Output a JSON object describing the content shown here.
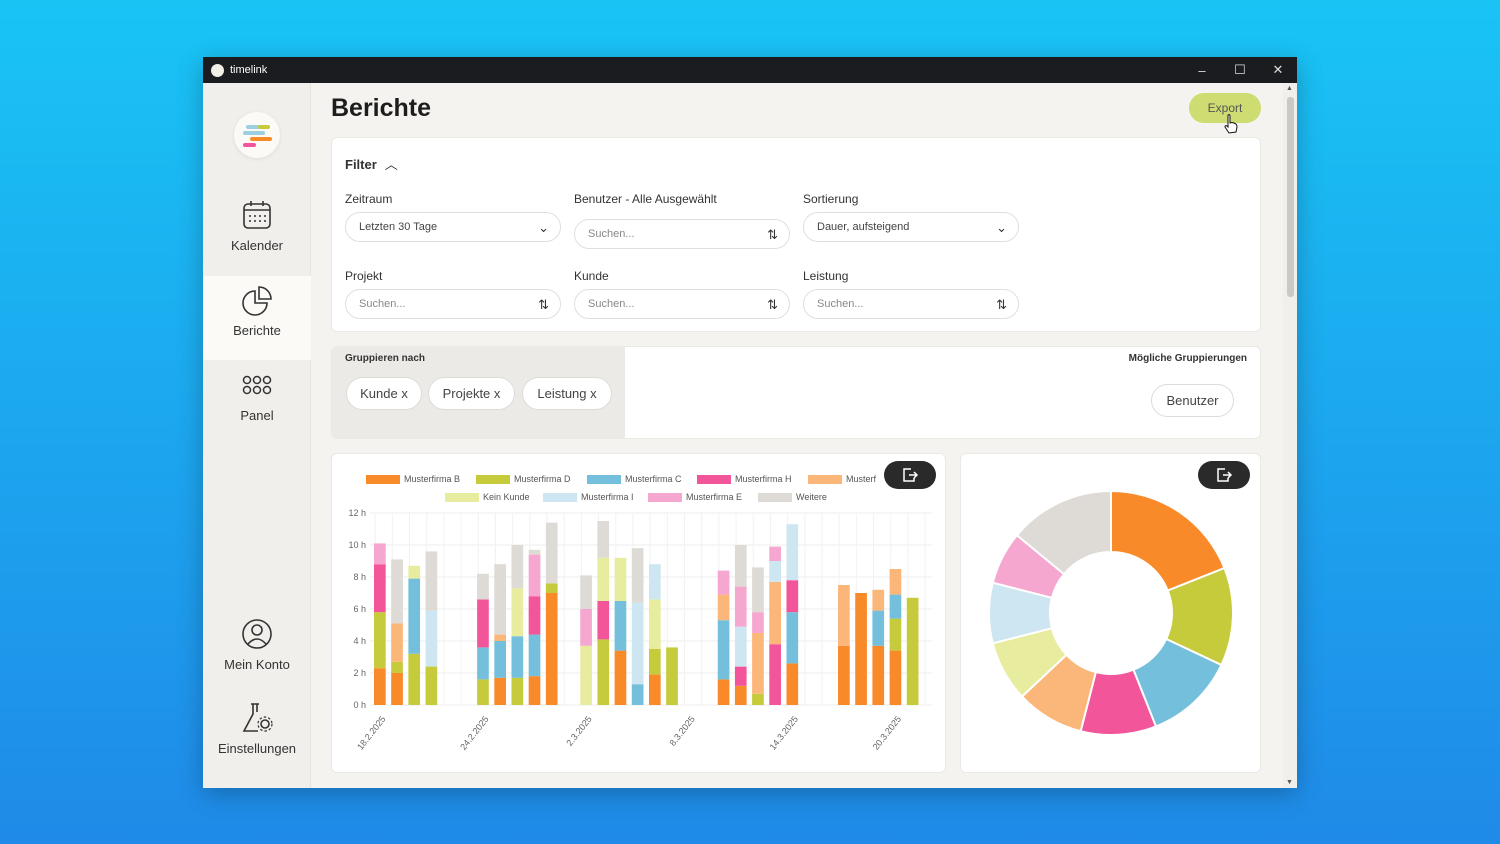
{
  "window": {
    "title": "timelink",
    "controls": [
      "–",
      "☐",
      "✕"
    ]
  },
  "sidebar": {
    "items": [
      {
        "label": "Kalender",
        "icon": "calendar-icon"
      },
      {
        "label": "Berichte",
        "icon": "pie-chart-icon",
        "active": true
      },
      {
        "label": "Panel",
        "icon": "grid-icon"
      },
      {
        "label": "Mein Konto",
        "icon": "user-icon"
      },
      {
        "label": "Einstellungen",
        "icon": "flask-gear-icon"
      }
    ]
  },
  "page": {
    "title": "Berichte",
    "export_label": "Export"
  },
  "filter": {
    "title": "Filter",
    "zeitraum": {
      "label": "Zeitraum",
      "value": "Letzten 30 Tage"
    },
    "benutzer": {
      "label": "Benutzer - Alle Ausgewählt",
      "placeholder": "Suchen..."
    },
    "sortierung": {
      "label": "Sortierung",
      "value": "Dauer, aufsteigend"
    },
    "projekt": {
      "label": "Projekt",
      "placeholder": "Suchen..."
    },
    "kunde": {
      "label": "Kunde",
      "placeholder": "Suchen..."
    },
    "leistung": {
      "label": "Leistung",
      "placeholder": "Suchen..."
    }
  },
  "grouping": {
    "title": "Gruppieren nach",
    "active": [
      "Kunde x",
      "Projekte x",
      "Leistung x"
    ],
    "possible_title": "Mögliche Gruppierungen",
    "possible": [
      "Benutzer"
    ]
  },
  "colors": {
    "Musterfirma B": "#f98a2a",
    "Musterfirma D": "#c5cb3a",
    "Musterfirma C": "#74c0dc",
    "Musterfirma H": "#f2559a",
    "Musterfirma A": "#fbb679",
    "Kein Kunde": "#e8ec9f",
    "Musterfirma I": "#cde6f1",
    "Musterfirma E": "#f5a7cf",
    "Weitere": "#dedad5"
  },
  "chart_data": [
    {
      "type": "bar",
      "stacked": true,
      "legend": [
        "Musterfirma B",
        "Musterfirma D",
        "Musterfirma C",
        "Musterfirma H",
        "Musterf",
        "Kein Kunde",
        "Musterfirma I",
        "Musterfirma E",
        "Weitere"
      ],
      "y_ticks": [
        "0 h",
        "2 h",
        "4 h",
        "6 h",
        "8 h",
        "10 h",
        "12 h"
      ],
      "ylim": [
        0,
        12
      ],
      "x_ticks": [
        {
          "label": "18.2.2025",
          "day": 0
        },
        {
          "label": "24.2.2025",
          "day": 6
        },
        {
          "label": "2.3.2025",
          "day": 12
        },
        {
          "label": "8.3.2025",
          "day": 18
        },
        {
          "label": "14.3.2025",
          "day": 24
        },
        {
          "label": "20.3.2025",
          "day": 30
        }
      ],
      "bars": [
        {
          "day": 0,
          "segments": [
            [
              "Musterfirma B",
              2.3
            ],
            [
              "Musterfirma D",
              3.5
            ],
            [
              "Musterfirma H",
              3.0
            ],
            [
              "Musterfirma E",
              1.3
            ]
          ]
        },
        {
          "day": 1,
          "segments": [
            [
              "Musterfirma B",
              2.0
            ],
            [
              "Musterfirma D",
              0.7
            ],
            [
              "Musterfirma A",
              2.4
            ],
            [
              "Weitere",
              4.0
            ]
          ]
        },
        {
          "day": 2,
          "segments": [
            [
              "Musterfirma D",
              3.2
            ],
            [
              "Musterfirma C",
              4.7
            ],
            [
              "Kein Kunde",
              0.8
            ]
          ]
        },
        {
          "day": 3,
          "segments": [
            [
              "Musterfirma D",
              2.4
            ],
            [
              "Musterfirma I",
              3.5
            ],
            [
              "Weitere",
              3.7
            ]
          ]
        },
        {
          "day": 6,
          "segments": [
            [
              "Musterfirma D",
              1.6
            ],
            [
              "Musterfirma C",
              2.0
            ],
            [
              "Musterfirma H",
              3.0
            ],
            [
              "Weitere",
              1.6
            ]
          ]
        },
        {
          "day": 7,
          "segments": [
            [
              "Musterfirma B",
              1.7
            ],
            [
              "Musterfirma C",
              2.3
            ],
            [
              "Musterfirma A",
              0.4
            ],
            [
              "Weitere",
              4.4
            ]
          ]
        },
        {
          "day": 8,
          "segments": [
            [
              "Musterfirma D",
              1.7
            ],
            [
              "Musterfirma C",
              2.6
            ],
            [
              "Kein Kunde",
              3.0
            ],
            [
              "Weitere",
              2.7
            ]
          ]
        },
        {
          "day": 9,
          "segments": [
            [
              "Musterfirma B",
              1.8
            ],
            [
              "Musterfirma C",
              2.6
            ],
            [
              "Musterfirma H",
              2.4
            ],
            [
              "Musterfirma E",
              2.6
            ],
            [
              "Weitere",
              0.3
            ]
          ]
        },
        {
          "day": 10,
          "segments": [
            [
              "Musterfirma B",
              7.0
            ],
            [
              "Musterfirma D",
              0.6
            ],
            [
              "Weitere",
              3.8
            ]
          ]
        },
        {
          "day": 12,
          "segments": [
            [
              "Kein Kunde",
              3.7
            ],
            [
              "Musterfirma E",
              2.3
            ],
            [
              "Weitere",
              2.1
            ]
          ]
        },
        {
          "day": 13,
          "segments": [
            [
              "Musterfirma D",
              4.1
            ],
            [
              "Musterfirma H",
              2.4
            ],
            [
              "Kein Kunde",
              2.7
            ],
            [
              "Weitere",
              2.3
            ]
          ]
        },
        {
          "day": 14,
          "segments": [
            [
              "Musterfirma B",
              3.4
            ],
            [
              "Musterfirma C",
              3.1
            ],
            [
              "Kein Kunde",
              2.7
            ]
          ]
        },
        {
          "day": 15,
          "segments": [
            [
              "Musterfirma C",
              1.3
            ],
            [
              "Musterfirma I",
              5.1
            ],
            [
              "Weitere",
              3.4
            ]
          ]
        },
        {
          "day": 16,
          "segments": [
            [
              "Musterfirma B",
              1.9
            ],
            [
              "Musterfirma D",
              1.6
            ],
            [
              "Kein Kunde",
              3.1
            ],
            [
              "Musterfirma I",
              2.2
            ]
          ]
        },
        {
          "day": 17,
          "segments": [
            [
              "Musterfirma D",
              3.6
            ]
          ]
        },
        {
          "day": 20,
          "segments": [
            [
              "Musterfirma B",
              1.6
            ],
            [
              "Musterfirma C",
              3.7
            ],
            [
              "Musterfirma A",
              1.6
            ],
            [
              "Musterfirma E",
              1.5
            ]
          ]
        },
        {
          "day": 21,
          "segments": [
            [
              "Musterfirma B",
              1.2
            ],
            [
              "Musterfirma H",
              1.2
            ],
            [
              "Musterfirma I",
              2.5
            ],
            [
              "Musterfirma E",
              2.5
            ],
            [
              "Weitere",
              2.6
            ]
          ]
        },
        {
          "day": 22,
          "segments": [
            [
              "Musterfirma D",
              0.7
            ],
            [
              "Musterfirma A",
              3.8
            ],
            [
              "Musterfirma E",
              1.3
            ],
            [
              "Weitere",
              2.8
            ]
          ]
        },
        {
          "day": 23,
          "segments": [
            [
              "Musterfirma H",
              3.8
            ],
            [
              "Musterfirma A",
              3.9
            ],
            [
              "Musterfirma I",
              1.3
            ],
            [
              "Musterfirma E",
              0.9
            ]
          ]
        },
        {
          "day": 24,
          "segments": [
            [
              "Musterfirma B",
              2.6
            ],
            [
              "Musterfirma C",
              3.2
            ],
            [
              "Musterfirma H",
              2.0
            ],
            [
              "Musterfirma I",
              3.5
            ]
          ]
        },
        {
          "day": 27,
          "segments": [
            [
              "Musterfirma B",
              3.7
            ],
            [
              "Musterfirma A",
              3.8
            ]
          ]
        },
        {
          "day": 28,
          "segments": [
            [
              "Musterfirma B",
              7.0
            ]
          ]
        },
        {
          "day": 29,
          "segments": [
            [
              "Musterfirma B",
              3.7
            ],
            [
              "Musterfirma C",
              2.2
            ],
            [
              "Musterfirma A",
              1.3
            ]
          ]
        },
        {
          "day": 30,
          "segments": [
            [
              "Musterfirma B",
              3.4
            ],
            [
              "Musterfirma D",
              2.0
            ],
            [
              "Musterfirma C",
              1.5
            ],
            [
              "Musterfirma A",
              1.6
            ]
          ]
        },
        {
          "day": 31,
          "segments": [
            [
              "Musterfirma D",
              6.7
            ]
          ]
        }
      ]
    },
    {
      "type": "pie",
      "donut": true,
      "slices": [
        {
          "name": "Musterfirma B",
          "value": 19
        },
        {
          "name": "Musterfirma D",
          "value": 13
        },
        {
          "name": "Musterfirma C",
          "value": 12
        },
        {
          "name": "Musterfirma H",
          "value": 10
        },
        {
          "name": "Musterfirma A",
          "value": 9
        },
        {
          "name": "Kein Kunde",
          "value": 8
        },
        {
          "name": "Musterfirma I",
          "value": 8
        },
        {
          "name": "Musterfirma E",
          "value": 7
        },
        {
          "name": "Weitere",
          "value": 14
        }
      ]
    }
  ]
}
